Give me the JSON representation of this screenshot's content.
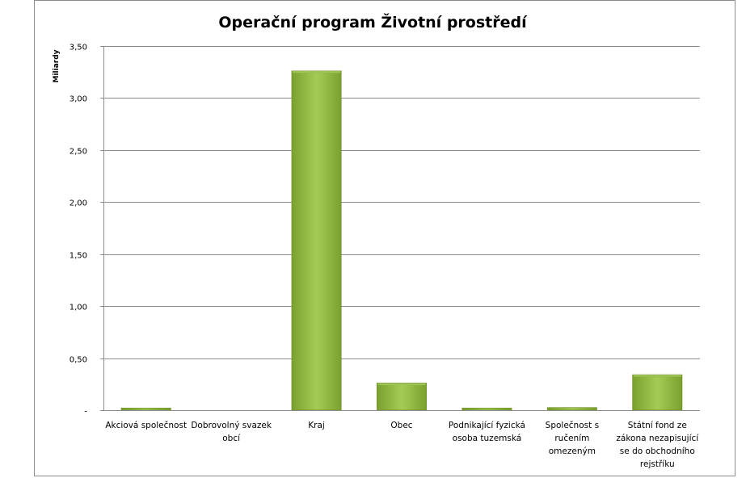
{
  "chart_data": {
    "type": "bar",
    "title": "Operační program Životní prostředí",
    "ylabel": "Miliardy",
    "xlabel": "",
    "ylim": [
      0,
      3.5
    ],
    "yticks": [
      "-",
      "0,50",
      "1,00",
      "1,50",
      "2,00",
      "2,50",
      "3,00",
      "3,50"
    ],
    "grid": true,
    "legend": "none",
    "categories": [
      "Akciová společnost",
      "Dobrovolný svazek obcí",
      "Kraj",
      "Obec",
      "Podnikající fyzická osoba tuzemská",
      "Společnost s ručením omezeným",
      "Státní fond ze zákona nezapisující se do obchodního rejstříku"
    ],
    "category_lines": [
      [
        "Akciová společnost"
      ],
      [
        "Dobrovolný svazek",
        "obcí"
      ],
      [
        "Kraj"
      ],
      [
        "Obec"
      ],
      [
        "Podnikající fyzická",
        "osoba tuzemská"
      ],
      [
        "Společnost s",
        "ručením",
        "omezeným"
      ],
      [
        "Státní fond ze",
        "zákona nezapisující",
        "se do obchodního",
        "rejstříku"
      ]
    ],
    "values": [
      0.02,
      0.0,
      3.26,
      0.26,
      0.02,
      0.025,
      0.34
    ],
    "bar_color": "#8db63c"
  }
}
